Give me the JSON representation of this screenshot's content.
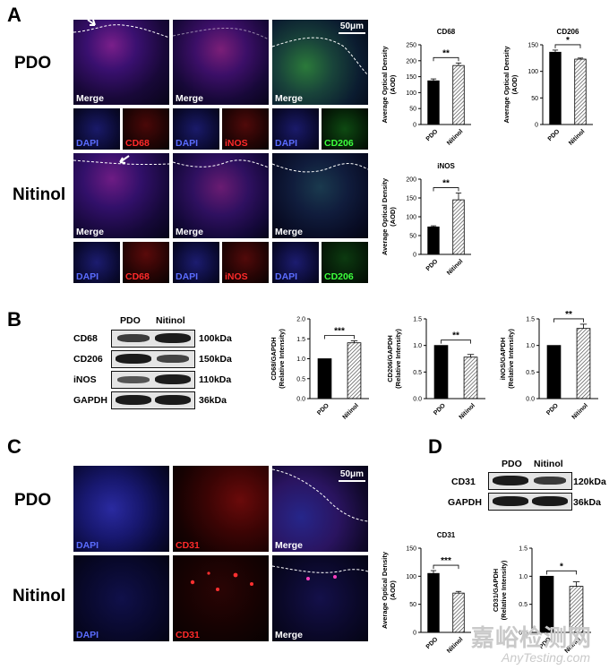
{
  "panels": {
    "A": "A",
    "B": "B",
    "C": "C",
    "D": "D"
  },
  "rows": {
    "pdo": "PDO",
    "nitinol": "Nitinol"
  },
  "scale_bar": "50μm",
  "stain_labels": {
    "merge": "Merge",
    "dapi": "DAPI",
    "cd68": "CD68",
    "inos": "iNOS",
    "cd206": "CD206",
    "cd31": "CD31"
  },
  "western": {
    "B": {
      "lanes": [
        "PDO",
        "Nitinol"
      ],
      "proteins": [
        "CD68",
        "CD206",
        "iNOS",
        "GAPDH"
      ],
      "sizes": [
        "100kDa",
        "150kDa",
        "110kDa",
        "36kDa"
      ]
    },
    "D": {
      "lanes": [
        "PDO",
        "Nitinol"
      ],
      "proteins": [
        "CD31",
        "GAPDH"
      ],
      "sizes": [
        "120kDa",
        "36kDa"
      ]
    }
  },
  "watermark": {
    "cn": "嘉峪检测网",
    "en": "AnyTesting.com"
  },
  "chart_data": [
    {
      "id": "a-cd68",
      "type": "bar",
      "title": "CD68",
      "ylabel": "Average Optical Density (AOD)",
      "categories": [
        "PDO",
        "Nitinol"
      ],
      "values": [
        137,
        185
      ],
      "errors": [
        6,
        8
      ],
      "ylim": [
        0,
        250
      ],
      "yticks": [
        0,
        50,
        100,
        150,
        200,
        250
      ],
      "significance": "**",
      "patterns": [
        "solid",
        "hatched"
      ]
    },
    {
      "id": "a-cd206",
      "type": "bar",
      "title": "CD206",
      "ylabel": "Average Optical Density (AOD)",
      "categories": [
        "PDO",
        "Nitinol"
      ],
      "values": [
        136,
        123
      ],
      "errors": [
        4,
        2
      ],
      "ylim": [
        0,
        150
      ],
      "yticks": [
        0,
        50,
        100,
        150
      ],
      "significance": "*",
      "patterns": [
        "solid",
        "hatched"
      ]
    },
    {
      "id": "a-inos",
      "type": "bar",
      "title": "iNOS",
      "ylabel": "Average Optical Density (AOD)",
      "categories": [
        "PDO",
        "Nitinol"
      ],
      "values": [
        73,
        145
      ],
      "errors": [
        3,
        18
      ],
      "ylim": [
        0,
        200
      ],
      "yticks": [
        0,
        50,
        100,
        150,
        200
      ],
      "significance": "**",
      "patterns": [
        "solid",
        "hatched"
      ]
    },
    {
      "id": "b-cd68",
      "type": "bar",
      "title": "",
      "ylabel": "CD68/GAPDH (Relative Intensity)",
      "categories": [
        "PDO",
        "Nitinol"
      ],
      "values": [
        1.0,
        1.4
      ],
      "errors": [
        0,
        0.05
      ],
      "ylim": [
        0,
        2.0
      ],
      "yticks": [
        0.0,
        0.5,
        1.0,
        1.5,
        2.0
      ],
      "significance": "***",
      "patterns": [
        "solid",
        "hatched"
      ]
    },
    {
      "id": "b-cd206",
      "type": "bar",
      "title": "",
      "ylabel": "CD206/GAPDH (Relative Intensity)",
      "categories": [
        "PDO",
        "Nitinol"
      ],
      "values": [
        1.0,
        0.78
      ],
      "errors": [
        0,
        0.05
      ],
      "ylim": [
        0,
        1.5
      ],
      "yticks": [
        0.0,
        0.5,
        1.0,
        1.5
      ],
      "significance": "**",
      "patterns": [
        "solid",
        "hatched"
      ]
    },
    {
      "id": "b-inos",
      "type": "bar",
      "title": "",
      "ylabel": "iNOS/GAPDH (Relative Intensity)",
      "categories": [
        "PDO",
        "Nitinol"
      ],
      "values": [
        1.0,
        1.32
      ],
      "errors": [
        0,
        0.08
      ],
      "ylim": [
        0,
        1.5
      ],
      "yticks": [
        0.0,
        0.5,
        1.0,
        1.5
      ],
      "significance": "**",
      "patterns": [
        "solid",
        "hatched"
      ]
    },
    {
      "id": "c-cd31",
      "type": "bar",
      "title": "CD31",
      "ylabel": "Average Optical Density (AOD)",
      "categories": [
        "PDO",
        "Nitinol"
      ],
      "values": [
        105,
        70
      ],
      "errors": [
        5,
        3
      ],
      "ylim": [
        0,
        150
      ],
      "yticks": [
        0,
        50,
        100,
        150
      ],
      "significance": "***",
      "patterns": [
        "solid",
        "hatched"
      ]
    },
    {
      "id": "d-cd31",
      "type": "bar",
      "title": "",
      "ylabel": "CD31/GAPDH (Relative Intensity)",
      "categories": [
        "PDO",
        "Nitinol"
      ],
      "values": [
        1.0,
        0.82
      ],
      "errors": [
        0,
        0.08
      ],
      "ylim": [
        0,
        1.5
      ],
      "yticks": [
        0.0,
        0.5,
        1.0,
        1.5
      ],
      "significance": "*",
      "patterns": [
        "solid",
        "hatched"
      ]
    }
  ]
}
